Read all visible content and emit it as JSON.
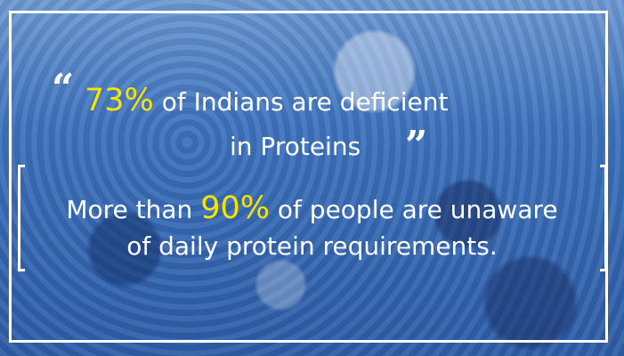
{
  "colors": {
    "overlay": "#3a6fb8",
    "highlight": "#f7e400",
    "text": "#ffffff"
  },
  "quote": {
    "open_mark": "“",
    "highlight": "73%",
    "line1_rest": " of Indians are deficient",
    "line2": "in Proteins",
    "close_mark": "”"
  },
  "fact": {
    "prefix": "More than ",
    "highlight": "90%",
    "line1_rest": " of people are unaware",
    "line2": "of daily protein requirements."
  }
}
